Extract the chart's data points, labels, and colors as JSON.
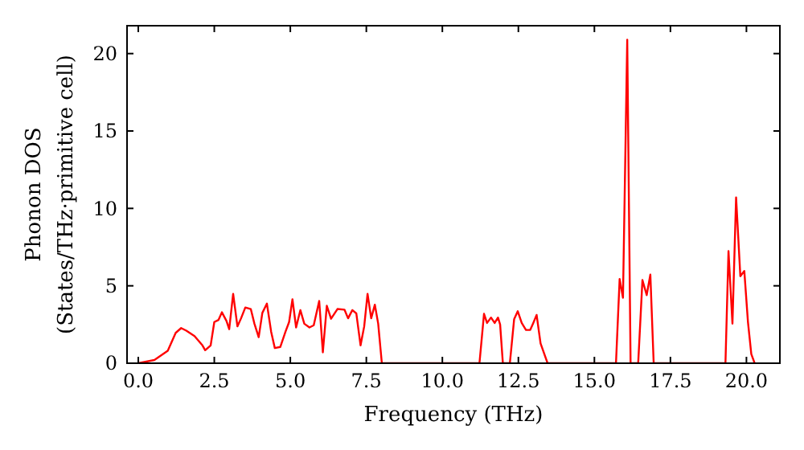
{
  "chart_data": {
    "type": "line",
    "xlabel": "Frequency (THz)",
    "ylabel": "Phonon DOS\n(States/THz·primitive cell)",
    "xlim": [
      -0.37,
      21.1
    ],
    "ylim": [
      0,
      21.8
    ],
    "xticks": [
      {
        "value": 0,
        "label": "0.0"
      },
      {
        "value": 2.5,
        "label": "2.5"
      },
      {
        "value": 5,
        "label": "5.0"
      },
      {
        "value": 7.5,
        "label": "7.5"
      },
      {
        "value": 10,
        "label": "10.0"
      },
      {
        "value": 12.5,
        "label": "12.5"
      },
      {
        "value": 15,
        "label": "15.0"
      },
      {
        "value": 17.5,
        "label": "17.5"
      },
      {
        "value": 20,
        "label": "20.0"
      }
    ],
    "yticks": [
      0,
      5,
      10,
      15,
      20
    ],
    "series": [
      {
        "color": "#ff0000",
        "x": [
          0,
          0.53,
          0.97,
          1.23,
          1.41,
          1.58,
          1.85,
          2.11,
          2.2,
          2.38,
          2.5,
          2.64,
          2.75,
          2.9,
          2.99,
          3.12,
          3.26,
          3.38,
          3.52,
          3.7,
          3.82,
          3.96,
          4.08,
          4.23,
          4.37,
          4.49,
          4.67,
          4.84,
          4.96,
          5.07,
          5.19,
          5.33,
          5.46,
          5.63,
          5.77,
          5.95,
          6.07,
          6.2,
          6.34,
          6.55,
          6.78,
          6.9,
          7.04,
          7.17,
          7.31,
          7.43,
          7.54,
          7.66,
          7.78,
          7.89,
          8.01,
          11.22,
          11.37,
          11.47,
          11.6,
          11.72,
          11.83,
          11.9,
          11.99,
          12.22,
          12.36,
          12.48,
          12.61,
          12.75,
          12.89,
          12.99,
          13.1,
          13.23,
          13.46,
          15.71,
          15.83,
          15.94,
          16.08,
          16.19,
          16.44,
          16.58,
          16.72,
          16.84,
          16.95,
          19.31,
          19.41,
          19.54,
          19.66,
          19.8,
          19.93,
          20.05,
          20.16,
          20.27
        ],
        "values": [
          0,
          0.21,
          0.8,
          1.96,
          2.27,
          2.1,
          1.75,
          1.15,
          0.84,
          1.15,
          2.66,
          2.8,
          3.29,
          2.73,
          2.2,
          4.48,
          2.38,
          2.9,
          3.6,
          3.5,
          2.55,
          1.68,
          3.25,
          3.85,
          2.03,
          0.98,
          1.05,
          2.03,
          2.66,
          4.13,
          2.31,
          3.43,
          2.55,
          2.31,
          2.45,
          4.02,
          0.7,
          3.71,
          2.87,
          3.5,
          3.46,
          2.9,
          3.43,
          3.22,
          1.15,
          2.38,
          4.48,
          2.9,
          3.78,
          2.55,
          0,
          0,
          3.19,
          2.6,
          2.95,
          2.6,
          2.95,
          2.5,
          0,
          0,
          2.84,
          3.36,
          2.6,
          2.15,
          2.15,
          2.6,
          3.12,
          1.28,
          0,
          0,
          5.44,
          4.23,
          20.9,
          0,
          0,
          5.37,
          4.4,
          5.72,
          0,
          0,
          7.24,
          2.56,
          10.71,
          5.62,
          5.96,
          2.67,
          0.59,
          0
        ]
      }
    ]
  }
}
